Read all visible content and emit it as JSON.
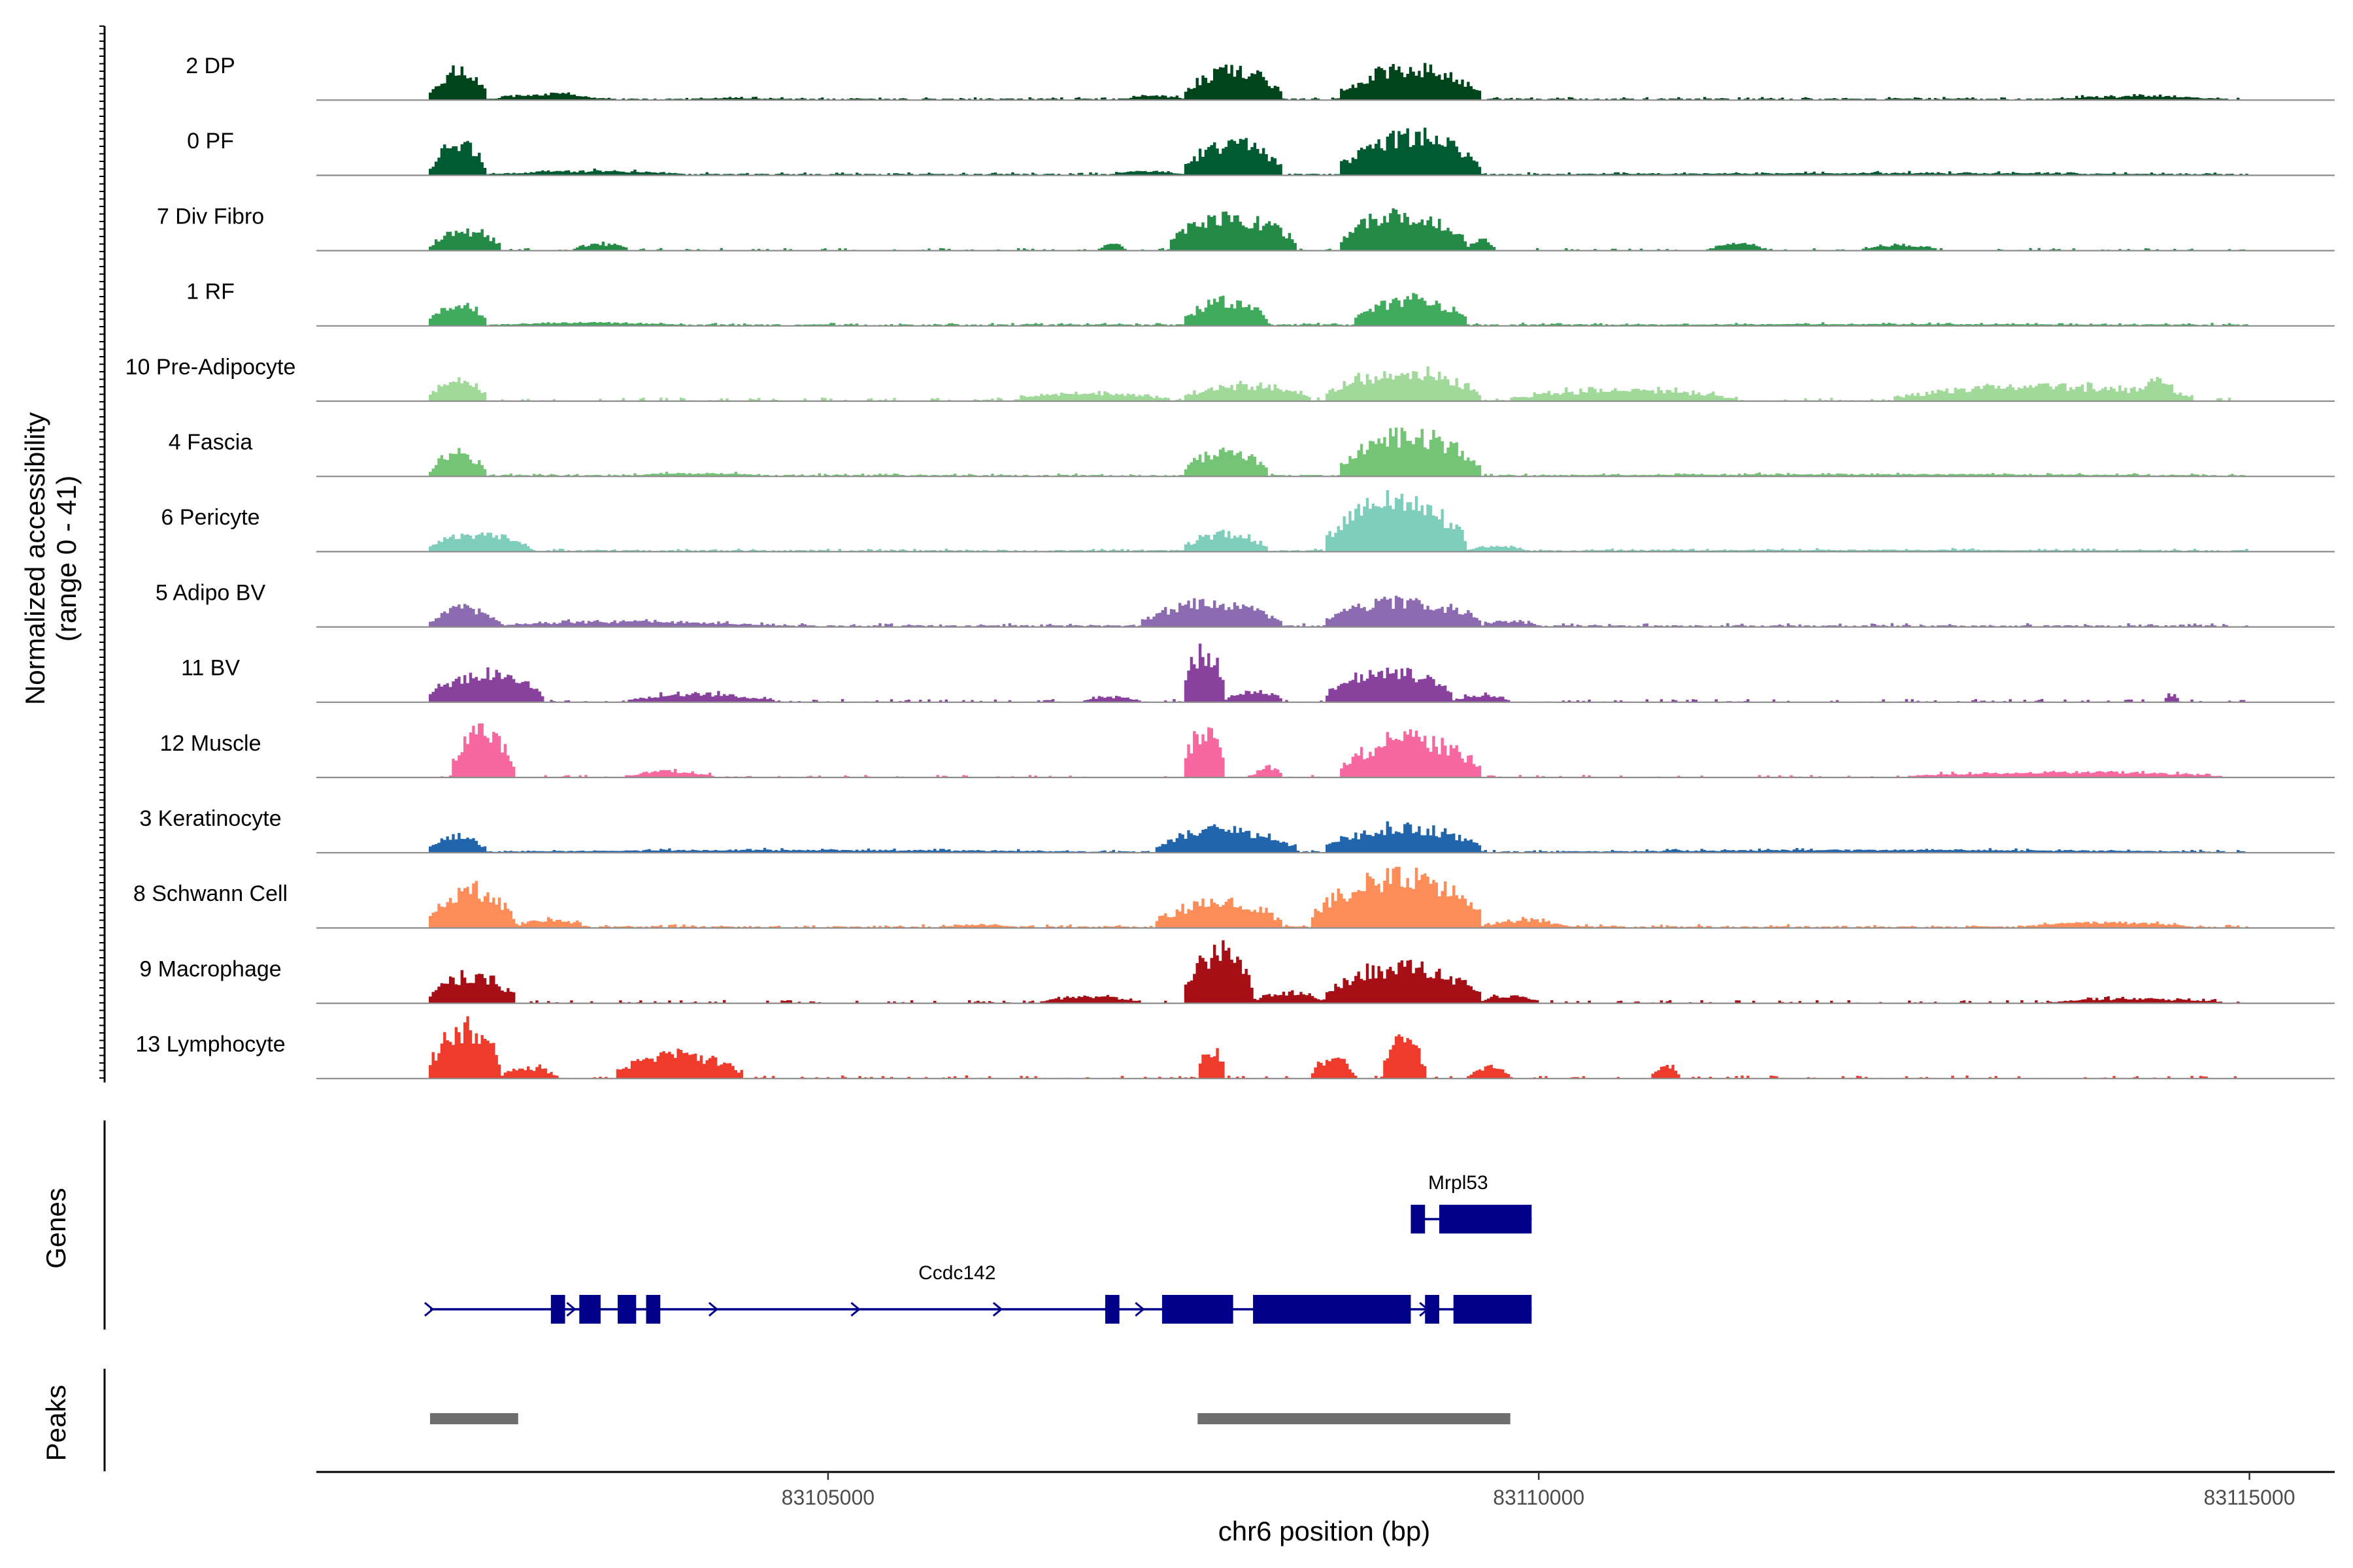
{
  "chart_data": {
    "type": "area",
    "title": "",
    "chromosome": "chr6",
    "xlabel": "chr6 position (bp)",
    "ylabel": "Normalized accessibility",
    "ylabel_range": "(range 0 - 41)",
    "xlim": [
      83101400,
      83115600
    ],
    "y_range": [
      0,
      41
    ],
    "x_ticks": [
      83105000,
      83110000,
      83115000
    ],
    "x_tick_labels": [
      "83105000",
      "83110000",
      "83115000"
    ],
    "genes_label": "Genes",
    "peaks_label": "Peaks",
    "tracks": [
      {
        "name": "2 DP",
        "color": "#00441b",
        "peaks": [
          [
            83102200,
            83102600,
            0.55,
            18
          ],
          [
            83102650,
            83103400,
            0.12,
            40
          ],
          [
            83107500,
            83108200,
            0.58,
            16
          ],
          [
            83108600,
            83109600,
            0.62,
            26
          ],
          [
            83107100,
            83107500,
            0.08,
            20
          ],
          [
            83104000,
            83104600,
            0.04,
            12
          ],
          [
            83113600,
            83114800,
            0.07,
            30
          ]
        ],
        "baseline": 0.02,
        "noise": 0.03
      },
      {
        "name": "0 PF",
        "color": "#005a32",
        "peaks": [
          [
            83102200,
            83102600,
            0.6,
            16
          ],
          [
            83102650,
            83104000,
            0.08,
            50
          ],
          [
            83107500,
            83108200,
            0.62,
            16
          ],
          [
            83108600,
            83109600,
            0.78,
            22
          ],
          [
            83107000,
            83107500,
            0.08,
            18
          ],
          [
            83110000,
            83114800,
            0.04,
            60
          ]
        ],
        "baseline": 0.02,
        "noise": 0.03
      },
      {
        "name": "7 Div Fibro",
        "color": "#238b45",
        "peaks": [
          [
            83102200,
            83102700,
            0.38,
            22
          ],
          [
            83107400,
            83108300,
            0.65,
            26
          ],
          [
            83108600,
            83109500,
            0.7,
            30
          ],
          [
            83106900,
            83107100,
            0.12,
            6
          ],
          [
            83109500,
            83109700,
            0.2,
            8
          ],
          [
            83111200,
            83111600,
            0.12,
            10
          ],
          [
            83112300,
            83112800,
            0.1,
            10
          ],
          [
            83103200,
            83103600,
            0.12,
            8
          ]
        ],
        "baseline": 0.0,
        "noise": 0.04
      },
      {
        "name": "1 RF",
        "color": "#41ab5d",
        "peaks": [
          [
            83102200,
            83102600,
            0.45,
            16
          ],
          [
            83107500,
            83108100,
            0.5,
            16
          ],
          [
            83108700,
            83109500,
            0.5,
            20
          ],
          [
            83102650,
            83104000,
            0.06,
            40
          ],
          [
            83110000,
            83114800,
            0.03,
            60
          ]
        ],
        "baseline": 0.02,
        "noise": 0.03
      },
      {
        "name": "10 Pre-Adipocyte",
        "color": "#a1d99b",
        "peaks": [
          [
            83102200,
            83102600,
            0.4,
            20
          ],
          [
            83106300,
            83107400,
            0.15,
            40
          ],
          [
            83107500,
            83108400,
            0.3,
            30
          ],
          [
            83108500,
            83109600,
            0.55,
            34
          ],
          [
            83109800,
            83111400,
            0.2,
            40
          ],
          [
            83112500,
            83114600,
            0.28,
            50
          ],
          [
            83114200,
            83114500,
            0.45,
            10
          ]
        ],
        "baseline": 0.0,
        "noise": 0.06
      },
      {
        "name": "4 Fascia",
        "color": "#74c476",
        "peaks": [
          [
            83102200,
            83102600,
            0.45,
            16
          ],
          [
            83107500,
            83108100,
            0.5,
            16
          ],
          [
            83108600,
            83109600,
            0.8,
            28
          ],
          [
            83103600,
            83104600,
            0.06,
            20
          ],
          [
            83110000,
            83114800,
            0.04,
            60
          ]
        ],
        "baseline": 0.02,
        "noise": 0.03
      },
      {
        "name": "6 Pericyte",
        "color": "#7fcdbb",
        "peaks": [
          [
            83102200,
            83102900,
            0.35,
            26
          ],
          [
            83107500,
            83108100,
            0.35,
            16
          ],
          [
            83108500,
            83109500,
            1.0,
            30
          ],
          [
            83109500,
            83109900,
            0.12,
            10
          ],
          [
            83110000,
            83114800,
            0.03,
            60
          ]
        ],
        "baseline": 0.02,
        "noise": 0.03
      },
      {
        "name": "5 Adipo BV",
        "color": "#8c6bb1",
        "peaks": [
          [
            83102200,
            83102700,
            0.38,
            18
          ],
          [
            83102700,
            83104600,
            0.1,
            50
          ],
          [
            83107200,
            83108200,
            0.45,
            24
          ],
          [
            83108500,
            83109600,
            0.5,
            30
          ],
          [
            83109600,
            83110000,
            0.1,
            10
          ]
        ],
        "baseline": 0.02,
        "noise": 0.04
      },
      {
        "name": "11 BV",
        "color": "#88419d",
        "peaks": [
          [
            83102200,
            83103000,
            0.55,
            32
          ],
          [
            83103600,
            83104600,
            0.15,
            20
          ],
          [
            83106800,
            83107200,
            0.1,
            8
          ],
          [
            83107500,
            83107800,
            1.0,
            10
          ],
          [
            83107800,
            83108200,
            0.2,
            10
          ],
          [
            83108500,
            83109400,
            0.6,
            34
          ],
          [
            83109400,
            83109800,
            0.12,
            10
          ],
          [
            83114400,
            83114500,
            0.15,
            4
          ]
        ],
        "baseline": 0.0,
        "noise": 0.05
      },
      {
        "name": "12 Muscle",
        "color": "#f768a1",
        "peaks": [
          [
            83102350,
            83102800,
            0.9,
            18
          ],
          [
            83103600,
            83104200,
            0.12,
            10
          ],
          [
            83107500,
            83107800,
            0.95,
            12
          ],
          [
            83108000,
            83108200,
            0.2,
            6
          ],
          [
            83108600,
            83109600,
            0.75,
            26
          ],
          [
            83112600,
            83114800,
            0.1,
            20
          ]
        ],
        "baseline": 0.0,
        "noise": 0.04
      },
      {
        "name": "3 Keratinocyte",
        "color": "#2166ac",
        "peaks": [
          [
            83102200,
            83102600,
            0.32,
            16
          ],
          [
            83107300,
            83108300,
            0.45,
            26
          ],
          [
            83108500,
            83109600,
            0.5,
            30
          ],
          [
            83102600,
            83107000,
            0.05,
            80
          ],
          [
            83110000,
            83114800,
            0.05,
            70
          ]
        ],
        "baseline": 0.02,
        "noise": 0.03
      },
      {
        "name": "8 Schwann Cell",
        "color": "#fc8d59",
        "peaks": [
          [
            83102200,
            83102800,
            0.75,
            20
          ],
          [
            83102800,
            83103300,
            0.15,
            10
          ],
          [
            83107300,
            83108200,
            0.5,
            28
          ],
          [
            83108400,
            83109600,
            1.0,
            30
          ],
          [
            83109600,
            83110200,
            0.15,
            14
          ],
          [
            83105800,
            83106300,
            0.06,
            10
          ],
          [
            83113400,
            83114600,
            0.1,
            20
          ]
        ],
        "baseline": 0.02,
        "noise": 0.04
      },
      {
        "name": "9 Macrophage",
        "color": "#a50f15",
        "peaks": [
          [
            83102200,
            83102800,
            0.55,
            24
          ],
          [
            83106500,
            83107200,
            0.12,
            12
          ],
          [
            83107500,
            83108000,
            1.0,
            14
          ],
          [
            83108000,
            83108500,
            0.2,
            14
          ],
          [
            83108500,
            83109600,
            0.7,
            30
          ],
          [
            83109600,
            83110000,
            0.15,
            10
          ],
          [
            83113600,
            83114800,
            0.08,
            16
          ]
        ],
        "baseline": 0.0,
        "noise": 0.05
      },
      {
        "name": "13 Lymphocyte",
        "color": "#ef3b2c",
        "peaks": [
          [
            83102200,
            83102700,
            1.0,
            20
          ],
          [
            83102700,
            83103100,
            0.2,
            10
          ],
          [
            83103500,
            83104400,
            0.45,
            24
          ],
          [
            83107600,
            83107800,
            0.55,
            8
          ],
          [
            83108400,
            83108700,
            0.4,
            10
          ],
          [
            83108900,
            83109200,
            0.9,
            12
          ],
          [
            83109500,
            83109800,
            0.2,
            10
          ],
          [
            83110800,
            83111000,
            0.25,
            8
          ]
        ],
        "baseline": 0.0,
        "noise": 0.05
      }
    ],
    "genes": [
      {
        "name": "Mrpl53",
        "strand": "-",
        "start": 83109100,
        "end": 83109950,
        "exons": [
          [
            83109100,
            83109200
          ],
          [
            83109300,
            83109950
          ]
        ],
        "row": 0
      },
      {
        "name": "Ccdc142",
        "strand": "+",
        "start": 83102200,
        "end": 83109950,
        "exons": [
          [
            83103050,
            83103150
          ],
          [
            83103250,
            83103400
          ],
          [
            83103520,
            83103650
          ],
          [
            83103720,
            83103820
          ],
          [
            83106950,
            83107050
          ],
          [
            83107350,
            83107850
          ],
          [
            83107990,
            83109100
          ],
          [
            83109200,
            83109300
          ],
          [
            83109400,
            83109950
          ]
        ],
        "row": 1
      }
    ],
    "peaks": [
      [
        83102200,
        83102820
      ],
      [
        83107600,
        83109800
      ]
    ]
  }
}
